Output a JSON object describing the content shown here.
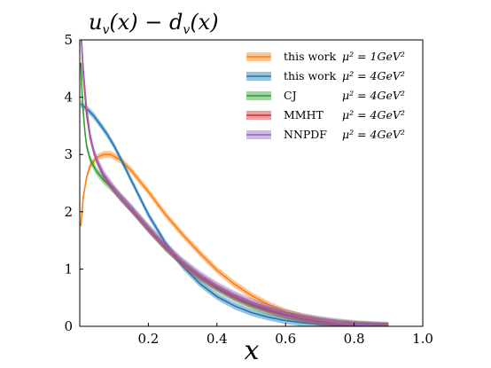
{
  "chart_data": {
    "type": "line",
    "title": "u_v(x) − d_v(x)",
    "xlabel": "x",
    "ylabel": "",
    "xlim": [
      0,
      1.0
    ],
    "ylim": [
      0,
      5
    ],
    "xticks": [
      0.2,
      0.4,
      0.6,
      0.8,
      1.0
    ],
    "xtick_labels": [
      "0.2",
      "0.4",
      "0.6",
      "0.8",
      "1.0"
    ],
    "yticks": [
      0,
      1,
      2,
      3,
      4,
      5
    ],
    "ytick_labels": [
      "0",
      "1",
      "2",
      "3",
      "4",
      "5"
    ],
    "grid": false,
    "legend_position": "top-right",
    "series": [
      {
        "name": "this work",
        "scale": "μ² = 1GeV²",
        "color": "#ff7f0e",
        "band": 0.06,
        "x": [
          0.003,
          0.01,
          0.02,
          0.03,
          0.05,
          0.07,
          0.09,
          0.12,
          0.15,
          0.2,
          0.25,
          0.3,
          0.35,
          0.4,
          0.45,
          0.5,
          0.55,
          0.6,
          0.65,
          0.7,
          0.75,
          0.8,
          0.85,
          0.9
        ],
        "y": [
          1.75,
          2.25,
          2.6,
          2.8,
          2.95,
          3.0,
          3.0,
          2.9,
          2.72,
          2.35,
          1.95,
          1.6,
          1.28,
          0.98,
          0.74,
          0.54,
          0.38,
          0.25,
          0.16,
          0.1,
          0.05,
          0.025,
          0.01,
          0.0
        ]
      },
      {
        "name": "this work",
        "scale": "μ² = 4GeV²",
        "color": "#1f77b4",
        "band": 0.06,
        "x": [
          0.003,
          0.02,
          0.04,
          0.06,
          0.08,
          0.1,
          0.12,
          0.15,
          0.2,
          0.25,
          0.3,
          0.35,
          0.4,
          0.45,
          0.5,
          0.55,
          0.6,
          0.65,
          0.7,
          0.75,
          0.8,
          0.85,
          0.9
        ],
        "y": [
          3.88,
          3.8,
          3.68,
          3.52,
          3.35,
          3.15,
          2.92,
          2.55,
          1.95,
          1.45,
          1.05,
          0.75,
          0.52,
          0.36,
          0.24,
          0.16,
          0.1,
          0.06,
          0.035,
          0.018,
          0.008,
          0.003,
          0.0
        ]
      },
      {
        "name": "CJ",
        "scale": "μ² = 4GeV²",
        "color": "#2ca02c",
        "band": 0.07,
        "x": [
          0.003,
          0.008,
          0.015,
          0.02,
          0.03,
          0.04,
          0.05,
          0.07,
          0.1,
          0.12,
          0.15,
          0.2,
          0.25,
          0.3,
          0.35,
          0.4,
          0.45,
          0.5,
          0.55,
          0.6,
          0.65,
          0.7,
          0.75,
          0.8,
          0.85,
          0.9
        ],
        "y": [
          4.6,
          3.9,
          3.4,
          3.15,
          2.92,
          2.8,
          2.7,
          2.55,
          2.38,
          2.25,
          2.05,
          1.7,
          1.37,
          1.1,
          0.86,
          0.66,
          0.5,
          0.37,
          0.27,
          0.19,
          0.13,
          0.08,
          0.05,
          0.025,
          0.01,
          0.0
        ]
      },
      {
        "name": "MMHT",
        "scale": "μ² = 4GeV²",
        "color": "#d62728",
        "band": 0.06,
        "x": [
          0.005,
          0.01,
          0.02,
          0.03,
          0.04,
          0.05,
          0.07,
          0.1,
          0.12,
          0.15,
          0.2,
          0.25,
          0.3,
          0.35,
          0.4,
          0.45,
          0.5,
          0.55,
          0.6,
          0.65,
          0.7,
          0.75,
          0.8,
          0.85,
          0.9
        ],
        "y": [
          5.0,
          4.4,
          3.7,
          3.3,
          3.05,
          2.88,
          2.62,
          2.38,
          2.24,
          2.04,
          1.7,
          1.38,
          1.1,
          0.87,
          0.68,
          0.52,
          0.39,
          0.29,
          0.2,
          0.14,
          0.09,
          0.05,
          0.025,
          0.01,
          0.0
        ]
      },
      {
        "name": "NNPDF",
        "scale": "μ² = 4GeV²",
        "color": "#9467bd",
        "band": 0.08,
        "x": [
          0.005,
          0.01,
          0.02,
          0.03,
          0.04,
          0.05,
          0.07,
          0.1,
          0.12,
          0.15,
          0.2,
          0.25,
          0.3,
          0.35,
          0.4,
          0.45,
          0.5,
          0.55,
          0.6,
          0.65,
          0.7,
          0.75,
          0.8,
          0.85,
          0.9
        ],
        "y": [
          5.0,
          4.5,
          3.8,
          3.35,
          3.08,
          2.9,
          2.65,
          2.4,
          2.25,
          2.06,
          1.72,
          1.4,
          1.12,
          0.89,
          0.7,
          0.54,
          0.41,
          0.31,
          0.22,
          0.15,
          0.1,
          0.06,
          0.03,
          0.012,
          0.0
        ]
      }
    ]
  }
}
